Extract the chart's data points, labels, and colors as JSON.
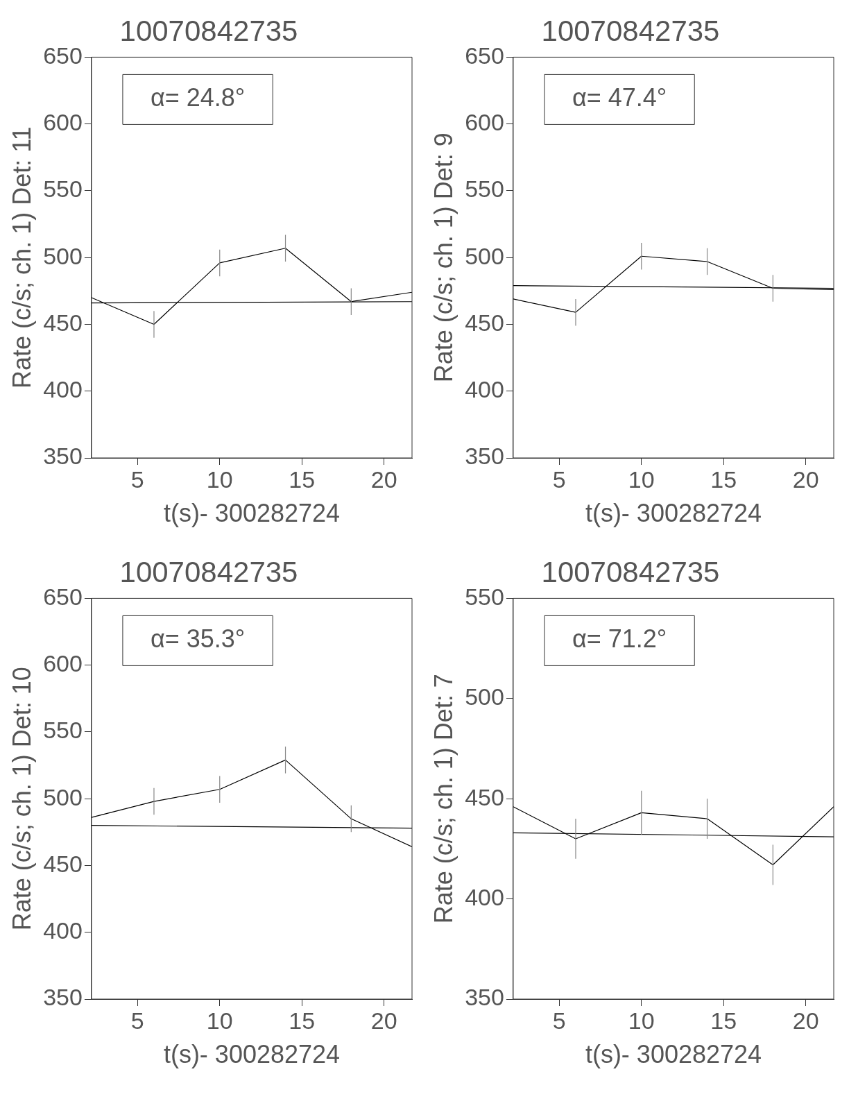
{
  "chart_data": [
    {
      "type": "line",
      "title": "10070842735",
      "xlabel": "t(s)- 300282724",
      "ylabel": "Rate (c/s; ch. 1) Det: 11",
      "annotations": [
        "α= 24.8°"
      ],
      "xlim": [
        2.2,
        21.7
      ],
      "xticks": [
        5,
        10,
        15,
        20
      ],
      "ylim": [
        350,
        650
      ],
      "yticks": [
        350,
        400,
        450,
        500,
        550,
        600,
        650
      ],
      "grid": false,
      "legend": false,
      "marker": "none",
      "line_style": "solid",
      "series": [
        {
          "color": "#000000",
          "x": [
            2.2,
            6,
            10,
            14,
            18,
            21.7
          ],
          "values": [
            470,
            450,
            496,
            507,
            467,
            474
          ],
          "errors": [
            null,
            10,
            10,
            10,
            10,
            null
          ]
        },
        {
          "color": "#000000",
          "x": [
            2.2,
            21.7
          ],
          "values": [
            466,
            467
          ]
        }
      ]
    },
    {
      "type": "line",
      "title": "10070842735",
      "xlabel": "t(s)- 300282724",
      "ylabel": "Rate (c/s; ch. 1) Det: 9",
      "annotations": [
        "α= 47.4°"
      ],
      "xlim": [
        2.2,
        21.7
      ],
      "xticks": [
        5,
        10,
        15,
        20
      ],
      "ylim": [
        350,
        650
      ],
      "yticks": [
        350,
        400,
        450,
        500,
        550,
        600,
        650
      ],
      "grid": false,
      "legend": false,
      "marker": "none",
      "line_style": "solid",
      "series": [
        {
          "color": "#000000",
          "x": [
            2.2,
            6,
            10,
            14,
            18,
            21.7
          ],
          "values": [
            469,
            459,
            501,
            497,
            477,
            476
          ],
          "errors": [
            null,
            10,
            10,
            10,
            10,
            null
          ]
        },
        {
          "color": "#000000",
          "x": [
            2.2,
            21.7
          ],
          "values": [
            479,
            477
          ]
        }
      ]
    },
    {
      "type": "line",
      "title": "10070842735",
      "xlabel": "t(s)- 300282724",
      "ylabel": "Rate (c/s; ch. 1) Det: 10",
      "annotations": [
        "α= 35.3°"
      ],
      "xlim": [
        2.2,
        21.7
      ],
      "xticks": [
        5,
        10,
        15,
        20
      ],
      "ylim": [
        350,
        650
      ],
      "yticks": [
        350,
        400,
        450,
        500,
        550,
        600,
        650
      ],
      "grid": false,
      "legend": false,
      "marker": "none",
      "line_style": "solid",
      "series": [
        {
          "color": "#000000",
          "x": [
            2.2,
            6,
            10,
            14,
            18,
            21.7
          ],
          "values": [
            486,
            498,
            507,
            529,
            485,
            464
          ],
          "errors": [
            null,
            10,
            10,
            10,
            10,
            null
          ]
        },
        {
          "color": "#000000",
          "x": [
            2.2,
            21.7
          ],
          "values": [
            480,
            478
          ]
        }
      ]
    },
    {
      "type": "line",
      "title": "10070842735",
      "xlabel": "t(s)- 300282724",
      "ylabel": "Rate (c/s; ch. 1) Det: 7",
      "annotations": [
        "α= 71.2°"
      ],
      "xlim": [
        2.2,
        21.7
      ],
      "xticks": [
        5,
        10,
        15,
        20
      ],
      "ylim": [
        350,
        550
      ],
      "yticks": [
        350,
        400,
        450,
        500,
        550
      ],
      "grid": false,
      "legend": false,
      "marker": "none",
      "line_style": "solid",
      "series": [
        {
          "color": "#000000",
          "x": [
            2.2,
            6,
            10,
            14,
            18,
            21.7
          ],
          "values": [
            446,
            430,
            443,
            440,
            417,
            446
          ],
          "errors": [
            null,
            10,
            11,
            10,
            10,
            null
          ]
        },
        {
          "color": "#000000",
          "x": [
            2.2,
            21.7
          ],
          "values": [
            433,
            431
          ]
        }
      ]
    }
  ]
}
